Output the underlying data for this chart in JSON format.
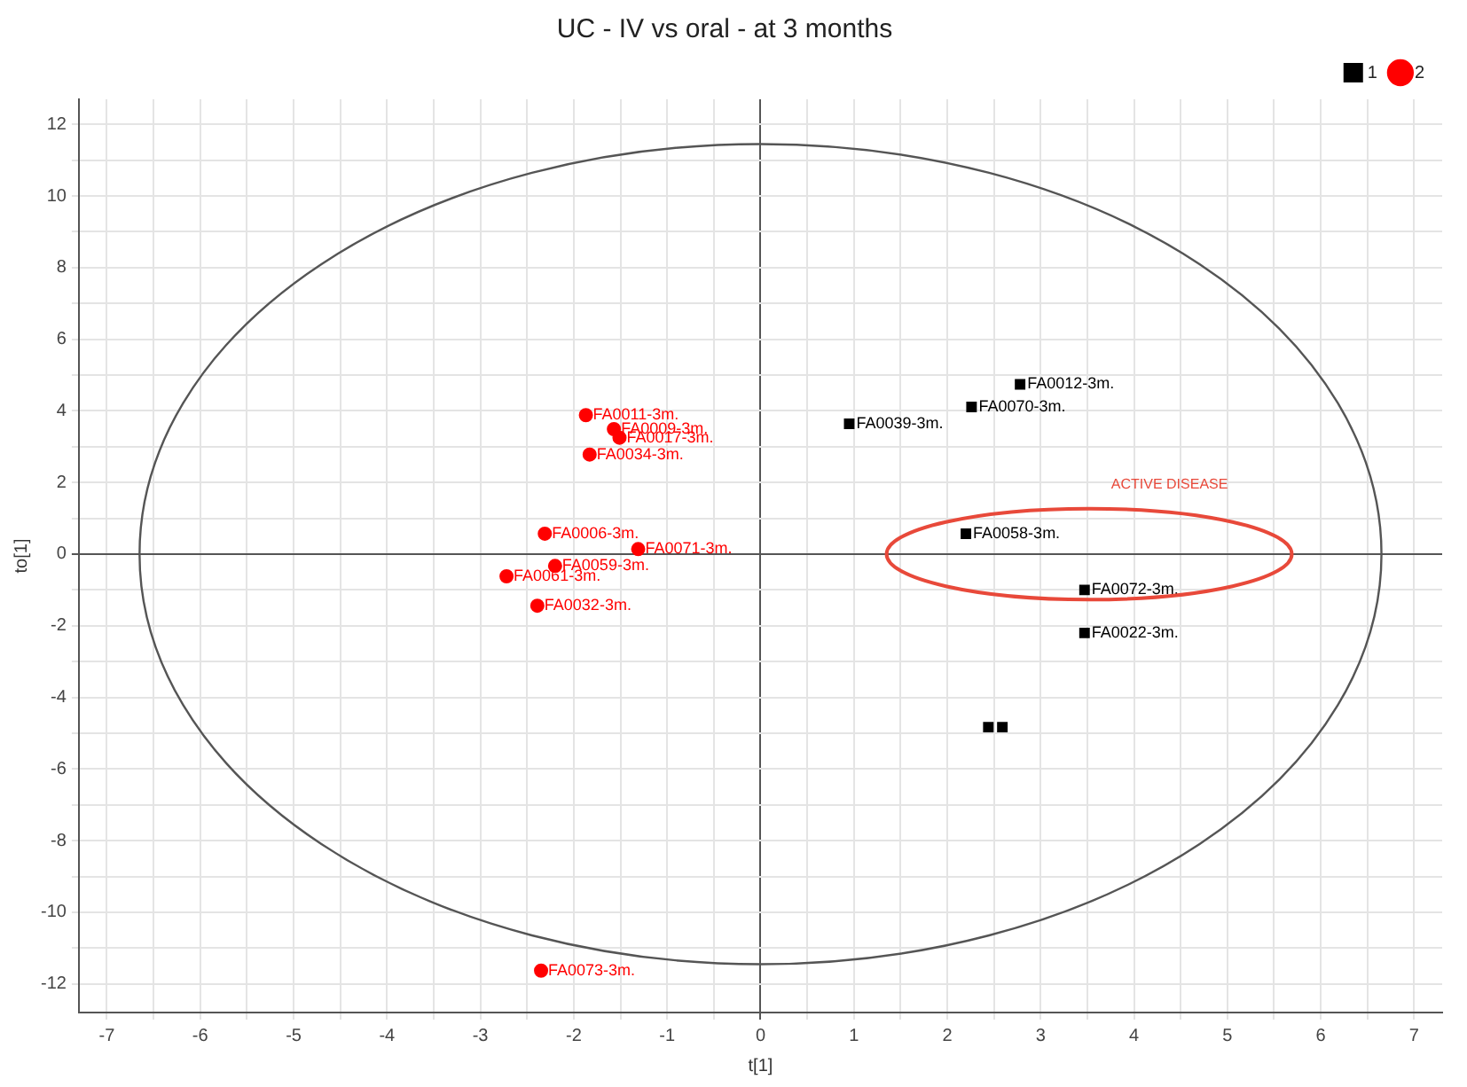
{
  "chart_data": {
    "type": "scatter",
    "title": "UC - IV vs oral - at 3 months",
    "xlabel": "t[1]",
    "ylabel": "to[1]",
    "xlim": [
      -7.3,
      7.3
    ],
    "ylim": [
      -12.8,
      12.7
    ],
    "xticks": [
      -7,
      {
        "value": -6.5,
        "label": null
      },
      -6,
      {
        "value": -5.5,
        "label": null
      },
      -5,
      {
        "value": -4.5,
        "label": null
      },
      -4,
      {
        "value": -3.5,
        "label": null
      },
      -3,
      {
        "value": -2.5,
        "label": null
      },
      -2,
      {
        "value": -1.5,
        "label": null
      },
      -1,
      {
        "value": -0.5,
        "label": null
      },
      0,
      {
        "value": 0.5,
        "label": null
      },
      1,
      {
        "value": 1.5,
        "label": null
      },
      2,
      {
        "value": 2.5,
        "label": null
      },
      3,
      {
        "value": 3.5,
        "label": null
      },
      4,
      {
        "value": 4.5,
        "label": null
      },
      5,
      {
        "value": 5.5,
        "label": null
      },
      6,
      {
        "value": 6.5,
        "label": null
      },
      7
    ],
    "yticks": [
      -12,
      {
        "value": -11,
        "label": null
      },
      -10,
      {
        "value": -9,
        "label": null
      },
      -8,
      {
        "value": -7,
        "label": null
      },
      -6,
      {
        "value": -5,
        "label": null
      },
      -4,
      {
        "value": -3,
        "label": null
      },
      -2,
      {
        "value": -1,
        "label": null
      },
      0,
      {
        "value": 1,
        "label": null
      },
      2,
      {
        "value": 3,
        "label": null
      },
      4,
      {
        "value": 5,
        "label": null
      },
      6,
      {
        "value": 7,
        "label": null
      },
      8,
      {
        "value": 9,
        "label": null
      },
      10,
      {
        "value": 11,
        "label": null
      },
      12
    ],
    "grid": true,
    "legend": "top right",
    "annotations": [
      "ACTIVE DISEASE"
    ],
    "series": [
      {
        "name": "1",
        "color": "#000000",
        "marker": "square",
        "x": [
          2.78,
          2.26,
          0.95,
          2.2,
          3.47,
          3.47,
          2.44,
          2.59
        ],
        "values": [
          4.74,
          4.11,
          3.64,
          0.57,
          -1.0,
          -2.2,
          -4.83,
          -4.83
        ],
        "value_labels": [
          "FA0012-3m.",
          "FA0070-3m.",
          "FA0039-3m.",
          "FA0058-3m.",
          "FA0072-3m.",
          "FA0022-3m.",
          null,
          null
        ]
      },
      {
        "name": "2",
        "color": "#ff0000",
        "marker": "circle",
        "x": [
          -1.87,
          -1.57,
          -1.51,
          -1.83,
          -2.31,
          -1.31,
          -2.2,
          -2.72,
          -2.39,
          -2.35
        ],
        "values": [
          3.88,
          3.49,
          3.25,
          2.78,
          0.57,
          0.14,
          -0.33,
          -0.62,
          -1.44,
          -11.63
        ],
        "value_labels": [
          "FA0011-3m.",
          "FA0009-3m.",
          "FA0017-3m.",
          "FA0034-3m.",
          "FA0006-3m.",
          "FA0071-3m.",
          "FA0059-3m.",
          "FA0061-3m.",
          "FA0032-3m.",
          "FA0073-3m."
        ]
      }
    ]
  }
}
